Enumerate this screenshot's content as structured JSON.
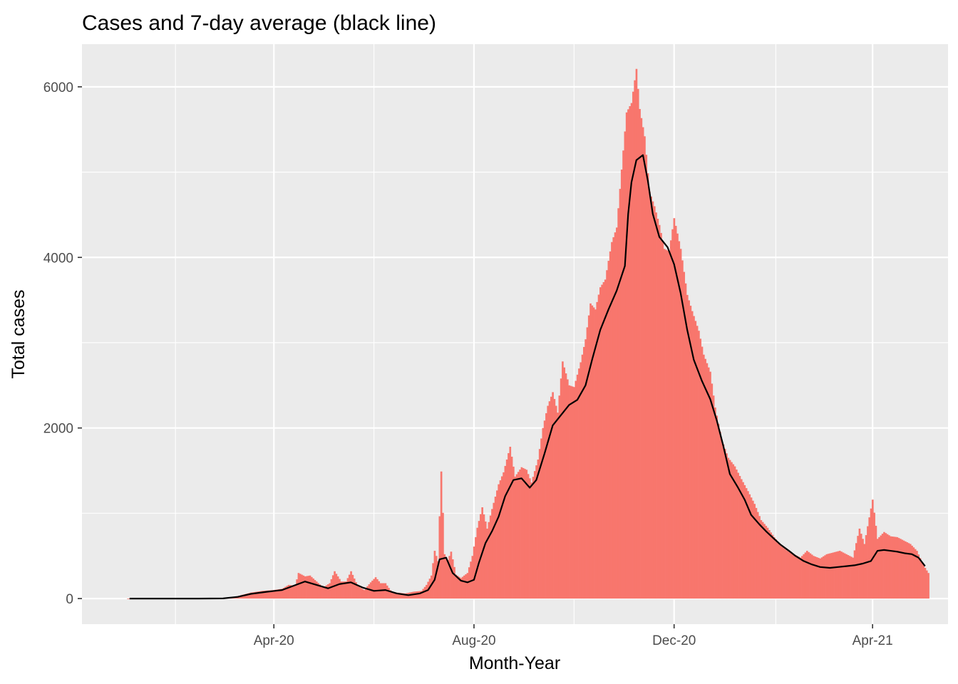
{
  "chart_data": {
    "type": "bar",
    "title": "Cases and 7-day average (black line)",
    "xlabel": "Month-Year",
    "ylabel": "Total cases",
    "x_axis": {
      "kind": "date",
      "range": [
        "2019-12-06",
        "2021-05-17"
      ],
      "ticks": [
        {
          "date": "2020-04-01",
          "label": "Apr-20"
        },
        {
          "date": "2020-08-01",
          "label": "Aug-20"
        },
        {
          "date": "2020-12-01",
          "label": "Dec-20"
        },
        {
          "date": "2021-04-01",
          "label": "Apr-21"
        }
      ],
      "minor_ticks": [
        "2020-02-01",
        "2020-06-01",
        "2020-10-01",
        "2021-02-01"
      ]
    },
    "y_axis": {
      "range": [
        -300,
        6500
      ],
      "ticks": [
        0,
        2000,
        4000,
        6000
      ],
      "minor_ticks": [
        1000,
        3000,
        5000
      ]
    },
    "grid": true,
    "bar_series": {
      "name": "Cases",
      "color": "#F8766D",
      "points": [
        [
          "2020-01-03",
          0
        ],
        [
          "2020-01-22",
          0
        ],
        [
          "2020-02-15",
          0
        ],
        [
          "2020-03-01",
          2
        ],
        [
          "2020-03-08",
          15
        ],
        [
          "2020-03-12",
          40
        ],
        [
          "2020-03-18",
          70
        ],
        [
          "2020-03-25",
          90
        ],
        [
          "2020-04-01",
          100
        ],
        [
          "2020-04-06",
          115
        ],
        [
          "2020-04-10",
          160
        ],
        [
          "2020-04-14",
          150
        ],
        [
          "2020-04-16",
          300
        ],
        [
          "2020-04-20",
          260
        ],
        [
          "2020-04-23",
          270
        ],
        [
          "2020-04-27",
          200
        ],
        [
          "2020-05-01",
          130
        ],
        [
          "2020-05-05",
          180
        ],
        [
          "2020-05-08",
          320
        ],
        [
          "2020-05-12",
          200
        ],
        [
          "2020-05-15",
          200
        ],
        [
          "2020-05-18",
          320
        ],
        [
          "2020-05-22",
          150
        ],
        [
          "2020-05-26",
          100
        ],
        [
          "2020-05-30",
          190
        ],
        [
          "2020-06-02",
          250
        ],
        [
          "2020-06-05",
          180
        ],
        [
          "2020-06-08",
          180
        ],
        [
          "2020-06-12",
          70
        ],
        [
          "2020-06-15",
          70
        ],
        [
          "2020-06-20",
          60
        ],
        [
          "2020-06-25",
          80
        ],
        [
          "2020-06-30",
          90
        ],
        [
          "2020-07-03",
          160
        ],
        [
          "2020-07-06",
          270
        ],
        [
          "2020-07-08",
          560
        ],
        [
          "2020-07-10",
          440
        ],
        [
          "2020-07-12",
          1490
        ],
        [
          "2020-07-14",
          520
        ],
        [
          "2020-07-16",
          450
        ],
        [
          "2020-07-18",
          550
        ],
        [
          "2020-07-21",
          280
        ],
        [
          "2020-07-24",
          240
        ],
        [
          "2020-07-28",
          300
        ],
        [
          "2020-07-31",
          500
        ],
        [
          "2020-08-03",
          830
        ],
        [
          "2020-08-06",
          1070
        ],
        [
          "2020-08-09",
          820
        ],
        [
          "2020-08-12",
          1050
        ],
        [
          "2020-08-16",
          1340
        ],
        [
          "2020-08-19",
          1480
        ],
        [
          "2020-08-23",
          1780
        ],
        [
          "2020-08-26",
          1430
        ],
        [
          "2020-08-30",
          1540
        ],
        [
          "2020-09-02",
          1510
        ],
        [
          "2020-09-05",
          1360
        ],
        [
          "2020-09-09",
          1630
        ],
        [
          "2020-09-12",
          2000
        ],
        [
          "2020-09-15",
          2260
        ],
        [
          "2020-09-18",
          2420
        ],
        [
          "2020-09-21",
          2180
        ],
        [
          "2020-09-24",
          2780
        ],
        [
          "2020-09-28",
          2500
        ],
        [
          "2020-10-01",
          2480
        ],
        [
          "2020-10-05",
          2770
        ],
        [
          "2020-10-08",
          3040
        ],
        [
          "2020-10-11",
          3460
        ],
        [
          "2020-10-14",
          3390
        ],
        [
          "2020-10-17",
          3650
        ],
        [
          "2020-10-20",
          3740
        ],
        [
          "2020-10-24",
          4180
        ],
        [
          "2020-10-27",
          4350
        ],
        [
          "2020-10-30",
          5030
        ],
        [
          "2020-11-02",
          5700
        ],
        [
          "2020-11-05",
          5810
        ],
        [
          "2020-11-08",
          6210
        ],
        [
          "2020-11-10",
          5740
        ],
        [
          "2020-11-13",
          5420
        ],
        [
          "2020-11-16",
          4770
        ],
        [
          "2020-11-19",
          4600
        ],
        [
          "2020-11-22",
          4380
        ],
        [
          "2020-11-25",
          4100
        ],
        [
          "2020-11-28",
          4070
        ],
        [
          "2020-12-01",
          4460
        ],
        [
          "2020-12-05",
          4100
        ],
        [
          "2020-12-09",
          3560
        ],
        [
          "2020-12-12",
          3370
        ],
        [
          "2020-12-16",
          3140
        ],
        [
          "2020-12-19",
          2860
        ],
        [
          "2020-12-23",
          2660
        ],
        [
          "2020-12-26",
          2240
        ],
        [
          "2020-12-30",
          1860
        ],
        [
          "2021-01-03",
          1650
        ],
        [
          "2021-01-07",
          1550
        ],
        [
          "2021-01-11",
          1400
        ],
        [
          "2021-01-15",
          1260
        ],
        [
          "2021-01-19",
          1110
        ],
        [
          "2021-01-23",
          920
        ],
        [
          "2021-01-27",
          830
        ],
        [
          "2021-01-31",
          720
        ],
        [
          "2021-02-04",
          620
        ],
        [
          "2021-02-08",
          560
        ],
        [
          "2021-02-12",
          520
        ],
        [
          "2021-02-16",
          480
        ],
        [
          "2021-02-20",
          560
        ],
        [
          "2021-02-24",
          500
        ],
        [
          "2021-02-28",
          470
        ],
        [
          "2021-03-04",
          520
        ],
        [
          "2021-03-08",
          540
        ],
        [
          "2021-03-12",
          560
        ],
        [
          "2021-03-16",
          520
        ],
        [
          "2021-03-20",
          480
        ],
        [
          "2021-03-24",
          820
        ],
        [
          "2021-03-27",
          640
        ],
        [
          "2021-04-01",
          1160
        ],
        [
          "2021-04-04",
          700
        ],
        [
          "2021-04-08",
          780
        ],
        [
          "2021-04-12",
          730
        ],
        [
          "2021-04-16",
          720
        ],
        [
          "2021-04-20",
          680
        ],
        [
          "2021-04-24",
          640
        ],
        [
          "2021-04-28",
          560
        ],
        [
          "2021-05-01",
          430
        ],
        [
          "2021-05-03",
          360
        ],
        [
          "2021-05-05",
          300
        ]
      ]
    },
    "line_series": {
      "name": "7-day average",
      "color": "#000000",
      "points": [
        [
          "2020-01-04",
          0
        ],
        [
          "2020-02-15",
          0
        ],
        [
          "2020-03-01",
          2
        ],
        [
          "2020-03-10",
          20
        ],
        [
          "2020-03-18",
          55
        ],
        [
          "2020-03-28",
          80
        ],
        [
          "2020-04-06",
          100
        ],
        [
          "2020-04-13",
          150
        ],
        [
          "2020-04-20",
          200
        ],
        [
          "2020-04-27",
          160
        ],
        [
          "2020-05-04",
          120
        ],
        [
          "2020-05-11",
          170
        ],
        [
          "2020-05-18",
          190
        ],
        [
          "2020-05-25",
          130
        ],
        [
          "2020-06-01",
          90
        ],
        [
          "2020-06-08",
          100
        ],
        [
          "2020-06-15",
          60
        ],
        [
          "2020-06-22",
          40
        ],
        [
          "2020-06-29",
          60
        ],
        [
          "2020-07-04",
          100
        ],
        [
          "2020-07-08",
          220
        ],
        [
          "2020-07-11",
          460
        ],
        [
          "2020-07-15",
          480
        ],
        [
          "2020-07-19",
          300
        ],
        [
          "2020-07-24",
          210
        ],
        [
          "2020-07-28",
          190
        ],
        [
          "2020-08-01",
          220
        ],
        [
          "2020-08-04",
          420
        ],
        [
          "2020-08-08",
          650
        ],
        [
          "2020-08-12",
          790
        ],
        [
          "2020-08-16",
          960
        ],
        [
          "2020-08-20",
          1200
        ],
        [
          "2020-08-25",
          1390
        ],
        [
          "2020-08-30",
          1410
        ],
        [
          "2020-09-04",
          1300
        ],
        [
          "2020-09-08",
          1390
        ],
        [
          "2020-09-13",
          1700
        ],
        [
          "2020-09-18",
          2030
        ],
        [
          "2020-09-23",
          2150
        ],
        [
          "2020-09-28",
          2270
        ],
        [
          "2020-10-03",
          2330
        ],
        [
          "2020-10-08",
          2500
        ],
        [
          "2020-10-12",
          2800
        ],
        [
          "2020-10-17",
          3150
        ],
        [
          "2020-10-22",
          3390
        ],
        [
          "2020-10-27",
          3610
        ],
        [
          "2020-11-01",
          3900
        ],
        [
          "2020-11-03",
          4510
        ],
        [
          "2020-11-05",
          4880
        ],
        [
          "2020-11-08",
          5140
        ],
        [
          "2020-11-12",
          5200
        ],
        [
          "2020-11-15",
          4900
        ],
        [
          "2020-11-18",
          4510
        ],
        [
          "2020-11-22",
          4240
        ],
        [
          "2020-11-27",
          4120
        ],
        [
          "2020-12-01",
          3920
        ],
        [
          "2020-12-05",
          3580
        ],
        [
          "2020-12-09",
          3150
        ],
        [
          "2020-12-13",
          2800
        ],
        [
          "2020-12-18",
          2550
        ],
        [
          "2020-12-23",
          2340
        ],
        [
          "2020-12-27",
          2090
        ],
        [
          "2020-12-31",
          1790
        ],
        [
          "2021-01-04",
          1460
        ],
        [
          "2021-01-09",
          1300
        ],
        [
          "2021-01-13",
          1160
        ],
        [
          "2021-01-17",
          980
        ],
        [
          "2021-01-22",
          870
        ],
        [
          "2021-01-26",
          790
        ],
        [
          "2021-01-31",
          700
        ],
        [
          "2021-02-04",
          630
        ],
        [
          "2021-02-09",
          560
        ],
        [
          "2021-02-13",
          500
        ],
        [
          "2021-02-18",
          440
        ],
        [
          "2021-02-23",
          400
        ],
        [
          "2021-02-28",
          370
        ],
        [
          "2021-03-06",
          360
        ],
        [
          "2021-03-11",
          370
        ],
        [
          "2021-03-16",
          380
        ],
        [
          "2021-03-21",
          390
        ],
        [
          "2021-03-26",
          410
        ],
        [
          "2021-03-31",
          440
        ],
        [
          "2021-04-04",
          560
        ],
        [
          "2021-04-08",
          570
        ],
        [
          "2021-04-12",
          560
        ],
        [
          "2021-04-16",
          550
        ],
        [
          "2021-04-21",
          530
        ],
        [
          "2021-04-25",
          520
        ],
        [
          "2021-04-29",
          480
        ],
        [
          "2021-05-03",
          380
        ]
      ]
    },
    "legend": "none"
  }
}
